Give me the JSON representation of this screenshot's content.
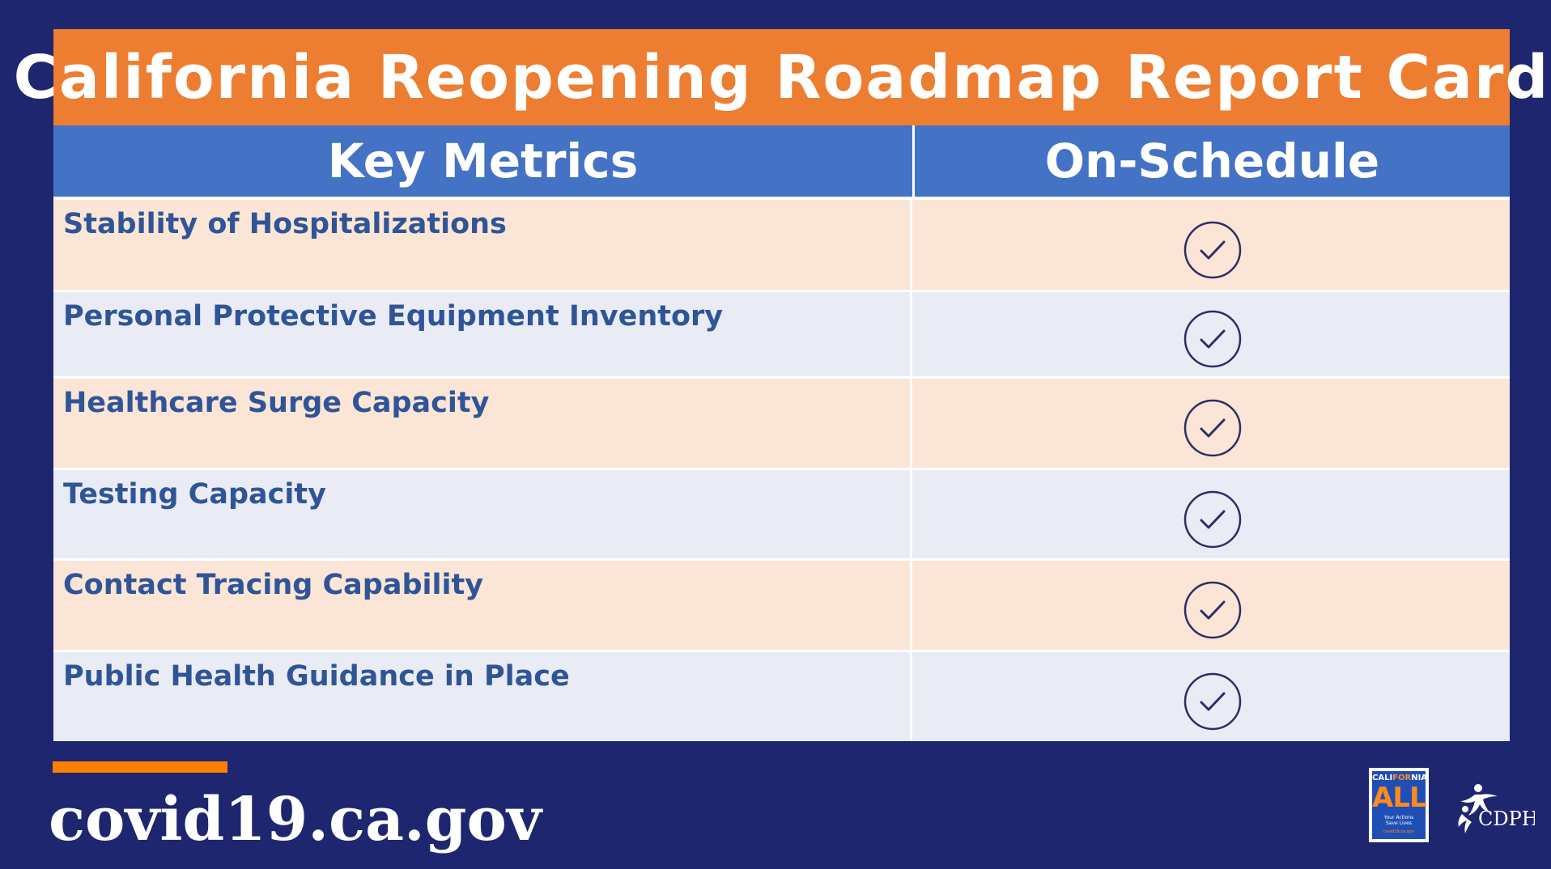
{
  "title": "California Reopening Roadmap Report Card",
  "table": {
    "headers": [
      "Key Metrics",
      "On-Schedule"
    ],
    "rows": [
      {
        "metric": "Stability of Hospitalizations",
        "status_icon": "check-circle-icon",
        "on_schedule": true
      },
      {
        "metric": "Personal Protective Equipment Inventory",
        "status_icon": "check-circle-icon",
        "on_schedule": true
      },
      {
        "metric": "Healthcare Surge Capacity",
        "status_icon": "check-circle-icon",
        "on_schedule": true
      },
      {
        "metric": "Testing Capacity",
        "status_icon": "check-circle-icon",
        "on_schedule": true
      },
      {
        "metric": "Contact Tracing Capability",
        "status_icon": "check-circle-icon",
        "on_schedule": true
      },
      {
        "metric": "Public Health Guidance in Place",
        "status_icon": "check-circle-icon",
        "on_schedule": true
      }
    ]
  },
  "footer": {
    "url": "covid19.ca.gov"
  },
  "logos": {
    "all": {
      "state_prefix": "CALI",
      "state_for": "FOR",
      "state_suffix": "NIA",
      "big": "ALL",
      "tagline_1": "Your Actions",
      "tagline_2": "Save Lives",
      "site": "covid19.ca.gov"
    },
    "cdph": "CDPH"
  },
  "colors": {
    "background": "#1f2670",
    "title_bar": "#ed7d31",
    "header_row": "#4472c4",
    "row_odd": "#fbe5d6",
    "row_even": "#e9ecf5",
    "metric_text": "#2f5597",
    "check_icon": "#2b2f66",
    "footer_accent": "#ff7f00"
  }
}
